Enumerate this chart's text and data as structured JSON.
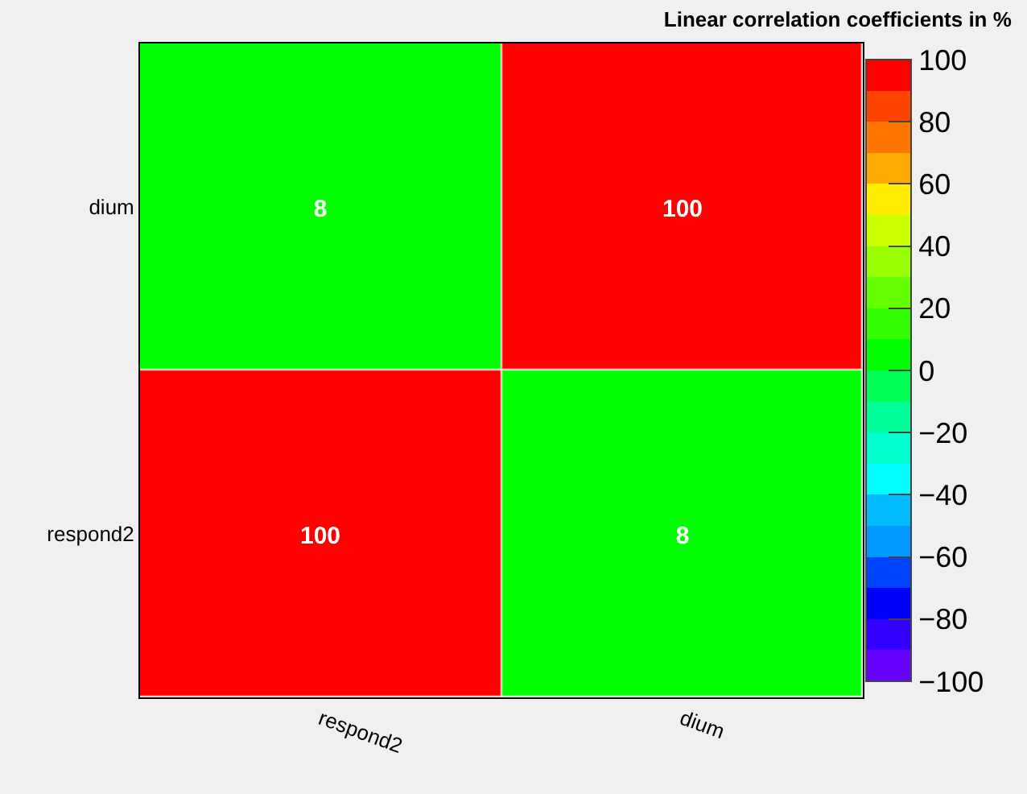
{
  "chart_data": {
    "type": "heatmap",
    "title": "Linear correlation coefficients in %",
    "categories": [
      "respond2",
      "dium"
    ],
    "y_categories": [
      "dium",
      "respond2"
    ],
    "cells": [
      [
        8,
        100
      ],
      [
        100,
        8
      ]
    ],
    "clim": [
      -100,
      100
    ],
    "cticks": [
      -100,
      -80,
      -60,
      -40,
      -20,
      0,
      20,
      40,
      60,
      80,
      100
    ],
    "data_labels": true
  }
}
